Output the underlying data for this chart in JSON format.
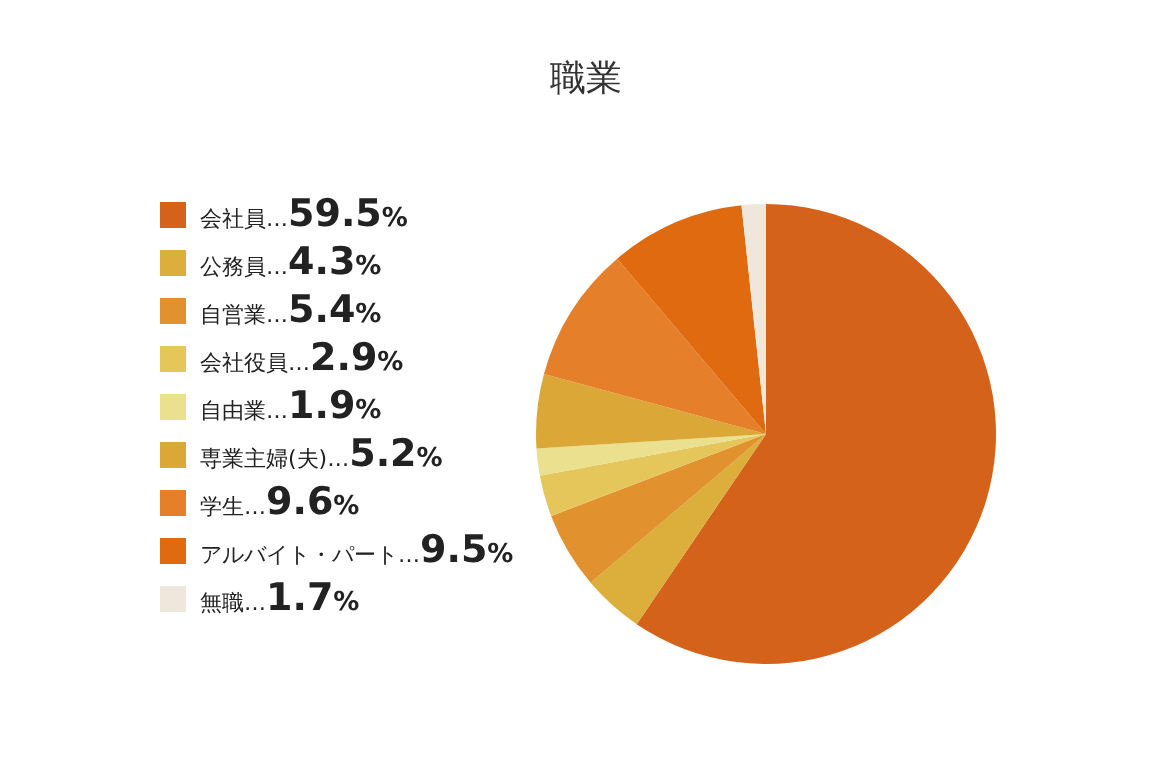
{
  "chart_data": {
    "type": "pie",
    "title": "職業",
    "categories": [
      "会社員…59.5%",
      "公務員…4.3%",
      "自営業…5.4%",
      "会社役員…2.9%",
      "自由業…1.9%",
      "専業主婦(夫)…5.2%",
      "学生…9.6%",
      "アルバイト・パート…9.5%",
      "無職…1.7%"
    ],
    "values": [
      59.5,
      4.3,
      5.4,
      2.9,
      1.9,
      5.2,
      9.6,
      9.5,
      1.7
    ],
    "colors": [
      "#d4621a",
      "#dcae3c",
      "#e1912e",
      "#e4c65a",
      "#ebe08e",
      "#dba838",
      "#e57f2a",
      "#df6a0f",
      "#efe6dc"
    ],
    "legend": "left"
  }
}
